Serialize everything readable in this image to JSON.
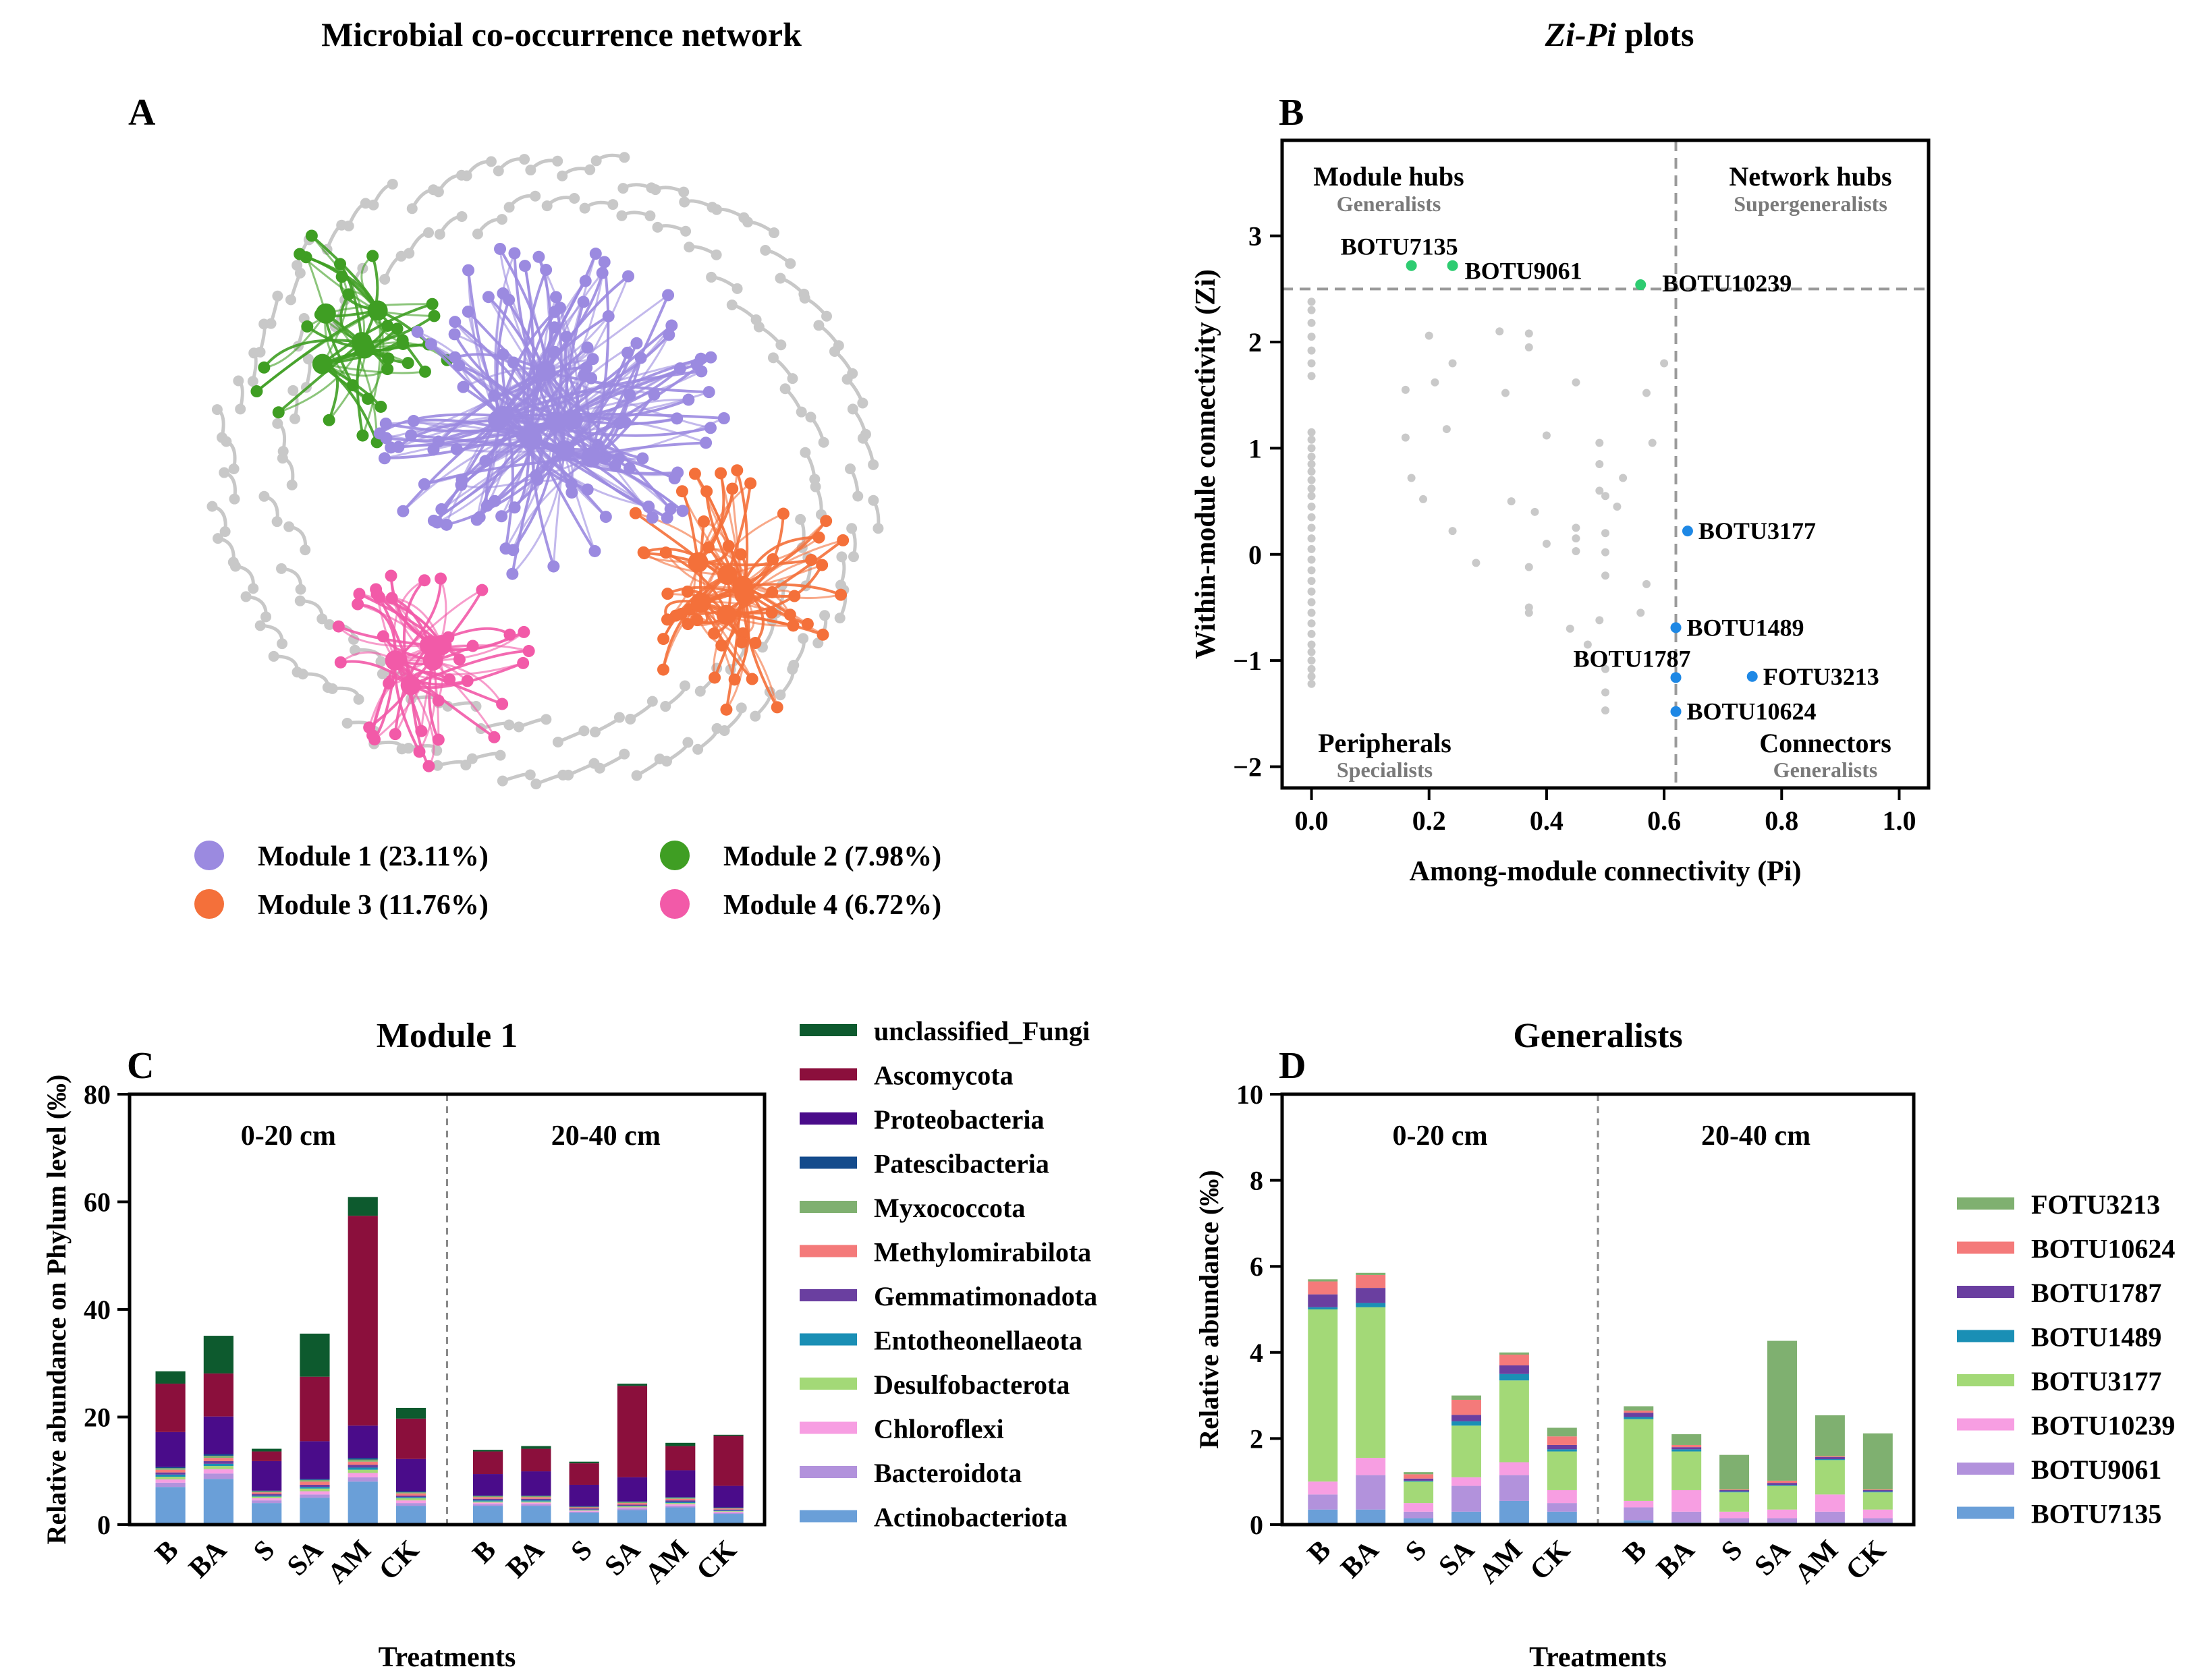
{
  "colors": {
    "module1": "#9b8ae0",
    "module2": "#3f9e23",
    "module3": "#f4703a",
    "module4": "#f25aa8",
    "other": "#c8c8c8",
    "zipi_hub": "#2ecc71",
    "zipi_conn": "#1e88e5",
    "zipi_other": "#c9c9c9"
  },
  "panel_a": {
    "title": "Microbial co-occurrence network",
    "letter": "A",
    "legend": [
      {
        "label": "Module 1 (23.11%)",
        "color": "#9b8ae0"
      },
      {
        "label": "Module 2 (7.98%)",
        "color": "#3f9e23"
      },
      {
        "label": "Module 3 (11.76%)",
        "color": "#f4703a"
      },
      {
        "label": "Module 4 (6.72%)",
        "color": "#f25aa8"
      }
    ]
  },
  "panel_b": {
    "title_italic": "Zi-Pi",
    "title_rest": " plots",
    "letter": "B",
    "quadrants": {
      "tl_title": "Module hubs",
      "tl_sub": "Generalists",
      "tr_title": "Network hubs",
      "tr_sub": "Supergeneralists",
      "bl_title": "Peripherals",
      "bl_sub": "Specialists",
      "br_title": "Connectors",
      "br_sub": "Generalists"
    }
  },
  "panel_c": {
    "letter": "C"
  },
  "panel_d": {
    "letter": "D"
  },
  "chart_data": [
    {
      "type": "scatter",
      "title": "Zi-Pi plots",
      "xlabel": "Among-module connectivity (Pi)",
      "ylabel": "Within-module connectivity (Zi)",
      "xlim": [
        -0.05,
        1.05
      ],
      "ylim": [
        -2.2,
        3.9
      ],
      "xticks": [
        0.0,
        0.2,
        0.4,
        0.6,
        0.8,
        1.0
      ],
      "xtick_labels": [
        "0.0",
        "0.2",
        "0.4",
        "0.6",
        "0.8",
        "1.0"
      ],
      "yticks": [
        -2,
        -1,
        0,
        1,
        2,
        3
      ],
      "ytick_labels": [
        "−2",
        "−1",
        "0",
        "1",
        "2",
        "3"
      ],
      "thresholds": {
        "pi": 0.62,
        "zi": 2.5
      },
      "labeled_points": [
        {
          "label": "BOTU7135",
          "x": 0.17,
          "y": 2.72,
          "group": "hub"
        },
        {
          "label": "BOTU9061",
          "x": 0.24,
          "y": 2.72,
          "group": "hub"
        },
        {
          "label": "BOTU10239",
          "x": 0.56,
          "y": 2.54,
          "group": "hub"
        },
        {
          "label": "BOTU3177",
          "x": 0.64,
          "y": 0.22,
          "group": "connector"
        },
        {
          "label": "BOTU1489",
          "x": 0.62,
          "y": -0.69,
          "group": "connector"
        },
        {
          "label": "BOTU1787",
          "x": 0.62,
          "y": -1.16,
          "group": "connector"
        },
        {
          "label": "FOTU3213",
          "x": 0.75,
          "y": -1.15,
          "group": "connector"
        },
        {
          "label": "BOTU10624",
          "x": 0.62,
          "y": -1.48,
          "group": "connector"
        }
      ],
      "other_points": [
        [
          0,
          2.38
        ],
        [
          0,
          2.3
        ],
        [
          0,
          2.18
        ],
        [
          0,
          2.05
        ],
        [
          0,
          1.92
        ],
        [
          0,
          1.8
        ],
        [
          0,
          1.68
        ],
        [
          0,
          1.15
        ],
        [
          0,
          1.08
        ],
        [
          0,
          1.0
        ],
        [
          0,
          0.92
        ],
        [
          0,
          0.85
        ],
        [
          0,
          0.78
        ],
        [
          0,
          0.7
        ],
        [
          0,
          0.62
        ],
        [
          0,
          0.55
        ],
        [
          0,
          0.45
        ],
        [
          0,
          0.35
        ],
        [
          0,
          0.25
        ],
        [
          0,
          0.15
        ],
        [
          0,
          0.05
        ],
        [
          0,
          -0.05
        ],
        [
          0,
          -0.15
        ],
        [
          0,
          -0.25
        ],
        [
          0,
          -0.35
        ],
        [
          0,
          -0.45
        ],
        [
          0,
          -0.55
        ],
        [
          0,
          -0.65
        ],
        [
          0,
          -0.75
        ],
        [
          0,
          -0.85
        ],
        [
          0,
          -0.92
        ],
        [
          0,
          -1.0
        ],
        [
          0,
          -1.08
        ],
        [
          0,
          -1.15
        ],
        [
          0,
          -1.22
        ],
        [
          0.2,
          2.06
        ],
        [
          0.16,
          1.55
        ],
        [
          0.21,
          1.62
        ],
        [
          0.24,
          1.8
        ],
        [
          0.23,
          1.18
        ],
        [
          0.16,
          1.1
        ],
        [
          0.17,
          0.72
        ],
        [
          0.19,
          0.52
        ],
        [
          0.24,
          0.22
        ],
        [
          0.28,
          -0.08
        ],
        [
          0.32,
          2.1
        ],
        [
          0.33,
          1.52
        ],
        [
          0.37,
          1.95
        ],
        [
          0.37,
          2.08
        ],
        [
          0.4,
          1.12
        ],
        [
          0.34,
          0.5
        ],
        [
          0.38,
          0.4
        ],
        [
          0.4,
          0.1
        ],
        [
          0.37,
          -0.12
        ],
        [
          0.37,
          -0.5
        ],
        [
          0.37,
          -0.55
        ],
        [
          0.45,
          1.62
        ],
        [
          0.45,
          0.25
        ],
        [
          0.45,
          0.15
        ],
        [
          0.45,
          0.03
        ],
        [
          0.44,
          -0.7
        ],
        [
          0.47,
          -0.85
        ],
        [
          0.49,
          1.05
        ],
        [
          0.49,
          0.85
        ],
        [
          0.49,
          0.6
        ],
        [
          0.5,
          0.55
        ],
        [
          0.5,
          0.2
        ],
        [
          0.5,
          0.02
        ],
        [
          0.5,
          -0.2
        ],
        [
          0.49,
          -0.62
        ],
        [
          0.5,
          -1.08
        ],
        [
          0.5,
          -1.3
        ],
        [
          0.5,
          -1.47
        ],
        [
          0.52,
          0.45
        ],
        [
          0.53,
          0.72
        ],
        [
          0.57,
          1.52
        ],
        [
          0.57,
          -0.28
        ],
        [
          0.58,
          1.05
        ],
        [
          0.6,
          1.8
        ],
        [
          0.56,
          -0.55
        ]
      ]
    },
    {
      "type": "bar",
      "stacked": true,
      "title": "Module 1",
      "xlabel": "Treatments",
      "ylabel": "Relative abundance on Phylum level (‰)",
      "ylim": [
        0,
        80
      ],
      "yticks": [
        0,
        20,
        40,
        60,
        80
      ],
      "groups": [
        "0-20 cm",
        "20-40 cm"
      ],
      "categories": [
        "B",
        "BA",
        "S",
        "SA",
        "AM",
        "CK",
        "B",
        "BA",
        "S",
        "SA",
        "AM",
        "CK"
      ],
      "series": [
        {
          "name": "Actinobacteriota",
          "color": "#6a9fd8",
          "values": [
            7,
            8.5,
            4,
            5,
            8,
            3.5,
            3.5,
            3.5,
            2.2,
            2.7,
            3.2,
            2
          ]
        },
        {
          "name": "Bacteroidota",
          "color": "#b292dc",
          "values": [
            0.8,
            1,
            0.5,
            0.6,
            0.8,
            0.5,
            0.3,
            0.3,
            0.2,
            0.3,
            0.3,
            0.2
          ]
        },
        {
          "name": "Chloroflexi",
          "color": "#f79ee2",
          "values": [
            0.6,
            0.8,
            0.4,
            0.6,
            0.8,
            0.5,
            0.3,
            0.3,
            0.2,
            0.2,
            0.3,
            0.2
          ]
        },
        {
          "name": "Desulfobacterota",
          "color": "#a3d977",
          "values": [
            0.5,
            0.6,
            0.3,
            0.5,
            0.6,
            0.4,
            0.2,
            0.2,
            0.1,
            0.2,
            0.2,
            0.1
          ]
        },
        {
          "name": "Entotheonellaeota",
          "color": "#1a8fb5",
          "values": [
            0.4,
            0.4,
            0.2,
            0.3,
            0.4,
            0.2,
            0.2,
            0.2,
            0.1,
            0.1,
            0.2,
            0.1
          ]
        },
        {
          "name": "Gemmatimonadota",
          "color": "#6a3fa0",
          "values": [
            0.4,
            0.5,
            0.3,
            0.4,
            0.5,
            0.3,
            0.3,
            0.3,
            0.2,
            0.2,
            0.3,
            0.2
          ]
        },
        {
          "name": "Methylomirabilota",
          "color": "#f47a7a",
          "values": [
            0.5,
            0.6,
            0.3,
            0.6,
            0.6,
            0.4,
            0.3,
            0.3,
            0.2,
            0.3,
            0.3,
            0.2
          ]
        },
        {
          "name": "Myxococcota",
          "color": "#7fb070",
          "values": [
            0.3,
            0.4,
            0.2,
            0.3,
            0.4,
            0.2,
            0.2,
            0.2,
            0.1,
            0.2,
            0.2,
            0.1
          ]
        },
        {
          "name": "Patescibacteria",
          "color": "#144b8c",
          "values": [
            0.2,
            0.3,
            0.1,
            0.2,
            0.3,
            0.2,
            0.1,
            0.1,
            0.1,
            0.1,
            0.1,
            0.1
          ]
        },
        {
          "name": "Proteobacteria",
          "color": "#4a0c8a",
          "values": [
            6.5,
            7,
            5.5,
            7,
            6,
            6,
            4,
            4.5,
            4,
            4.5,
            5,
            4
          ]
        },
        {
          "name": "Ascomycota",
          "color": "#8b0f3c",
          "values": [
            9,
            8,
            1.8,
            12,
            39,
            7.5,
            4.2,
            4.2,
            4,
            17,
            4.5,
            9.3
          ]
        },
        {
          "name": "unclassified_Fungi",
          "color": "#0d5a2e",
          "values": [
            2.3,
            7,
            0.5,
            8,
            3.5,
            2,
            0.3,
            0.5,
            0.3,
            0.4,
            0.6,
            0.2
          ]
        }
      ]
    },
    {
      "type": "bar",
      "stacked": true,
      "title": "Generalists",
      "xlabel": "Treatments",
      "ylabel": "Relative abundance (‰)",
      "ylim": [
        0,
        10
      ],
      "yticks": [
        0,
        2,
        4,
        6,
        8,
        10
      ],
      "groups": [
        "0-20 cm",
        "20-40 cm"
      ],
      "categories": [
        "B",
        "BA",
        "S",
        "SA",
        "AM",
        "CK",
        "B",
        "BA",
        "S",
        "SA",
        "AM",
        "CK"
      ],
      "series": [
        {
          "name": "BOTU7135",
          "color": "#6a9fd8",
          "values": [
            0.35,
            0.35,
            0.15,
            0.3,
            0.55,
            0.3,
            0.1,
            0.05,
            0.05,
            0.05,
            0.05,
            0.05
          ]
        },
        {
          "name": "BOTU9061",
          "color": "#b292dc",
          "values": [
            0.35,
            0.8,
            0.15,
            0.6,
            0.6,
            0.2,
            0.3,
            0.25,
            0.1,
            0.1,
            0.25,
            0.1
          ]
        },
        {
          "name": "BOTU10239",
          "color": "#f79ee2",
          "values": [
            0.3,
            0.4,
            0.2,
            0.2,
            0.3,
            0.3,
            0.15,
            0.5,
            0.15,
            0.2,
            0.4,
            0.2
          ]
        },
        {
          "name": "BOTU3177",
          "color": "#a3d977",
          "values": [
            4.0,
            3.5,
            0.5,
            1.2,
            1.9,
            0.9,
            1.9,
            0.9,
            0.45,
            0.55,
            0.8,
            0.4
          ]
        },
        {
          "name": "BOTU1489",
          "color": "#1a8fb5",
          "values": [
            0.05,
            0.1,
            0.02,
            0.1,
            0.15,
            0.05,
            0.05,
            0.05,
            0.02,
            0.02,
            0.02,
            0.02
          ]
        },
        {
          "name": "BOTU1787",
          "color": "#6a3fa0",
          "values": [
            0.3,
            0.35,
            0.05,
            0.15,
            0.2,
            0.1,
            0.1,
            0.05,
            0.03,
            0.05,
            0.05,
            0.03
          ]
        },
        {
          "name": "BOTU10624",
          "color": "#f47a7a",
          "values": [
            0.3,
            0.3,
            0.1,
            0.35,
            0.25,
            0.2,
            0.05,
            0.05,
            0.02,
            0.05,
            0.02,
            0.02
          ]
        },
        {
          "name": "FOTU3213",
          "color": "#7fb070",
          "values": [
            0.05,
            0.05,
            0.05,
            0.1,
            0.05,
            0.2,
            0.1,
            0.25,
            0.8,
            3.25,
            0.95,
            1.3
          ]
        }
      ]
    }
  ]
}
